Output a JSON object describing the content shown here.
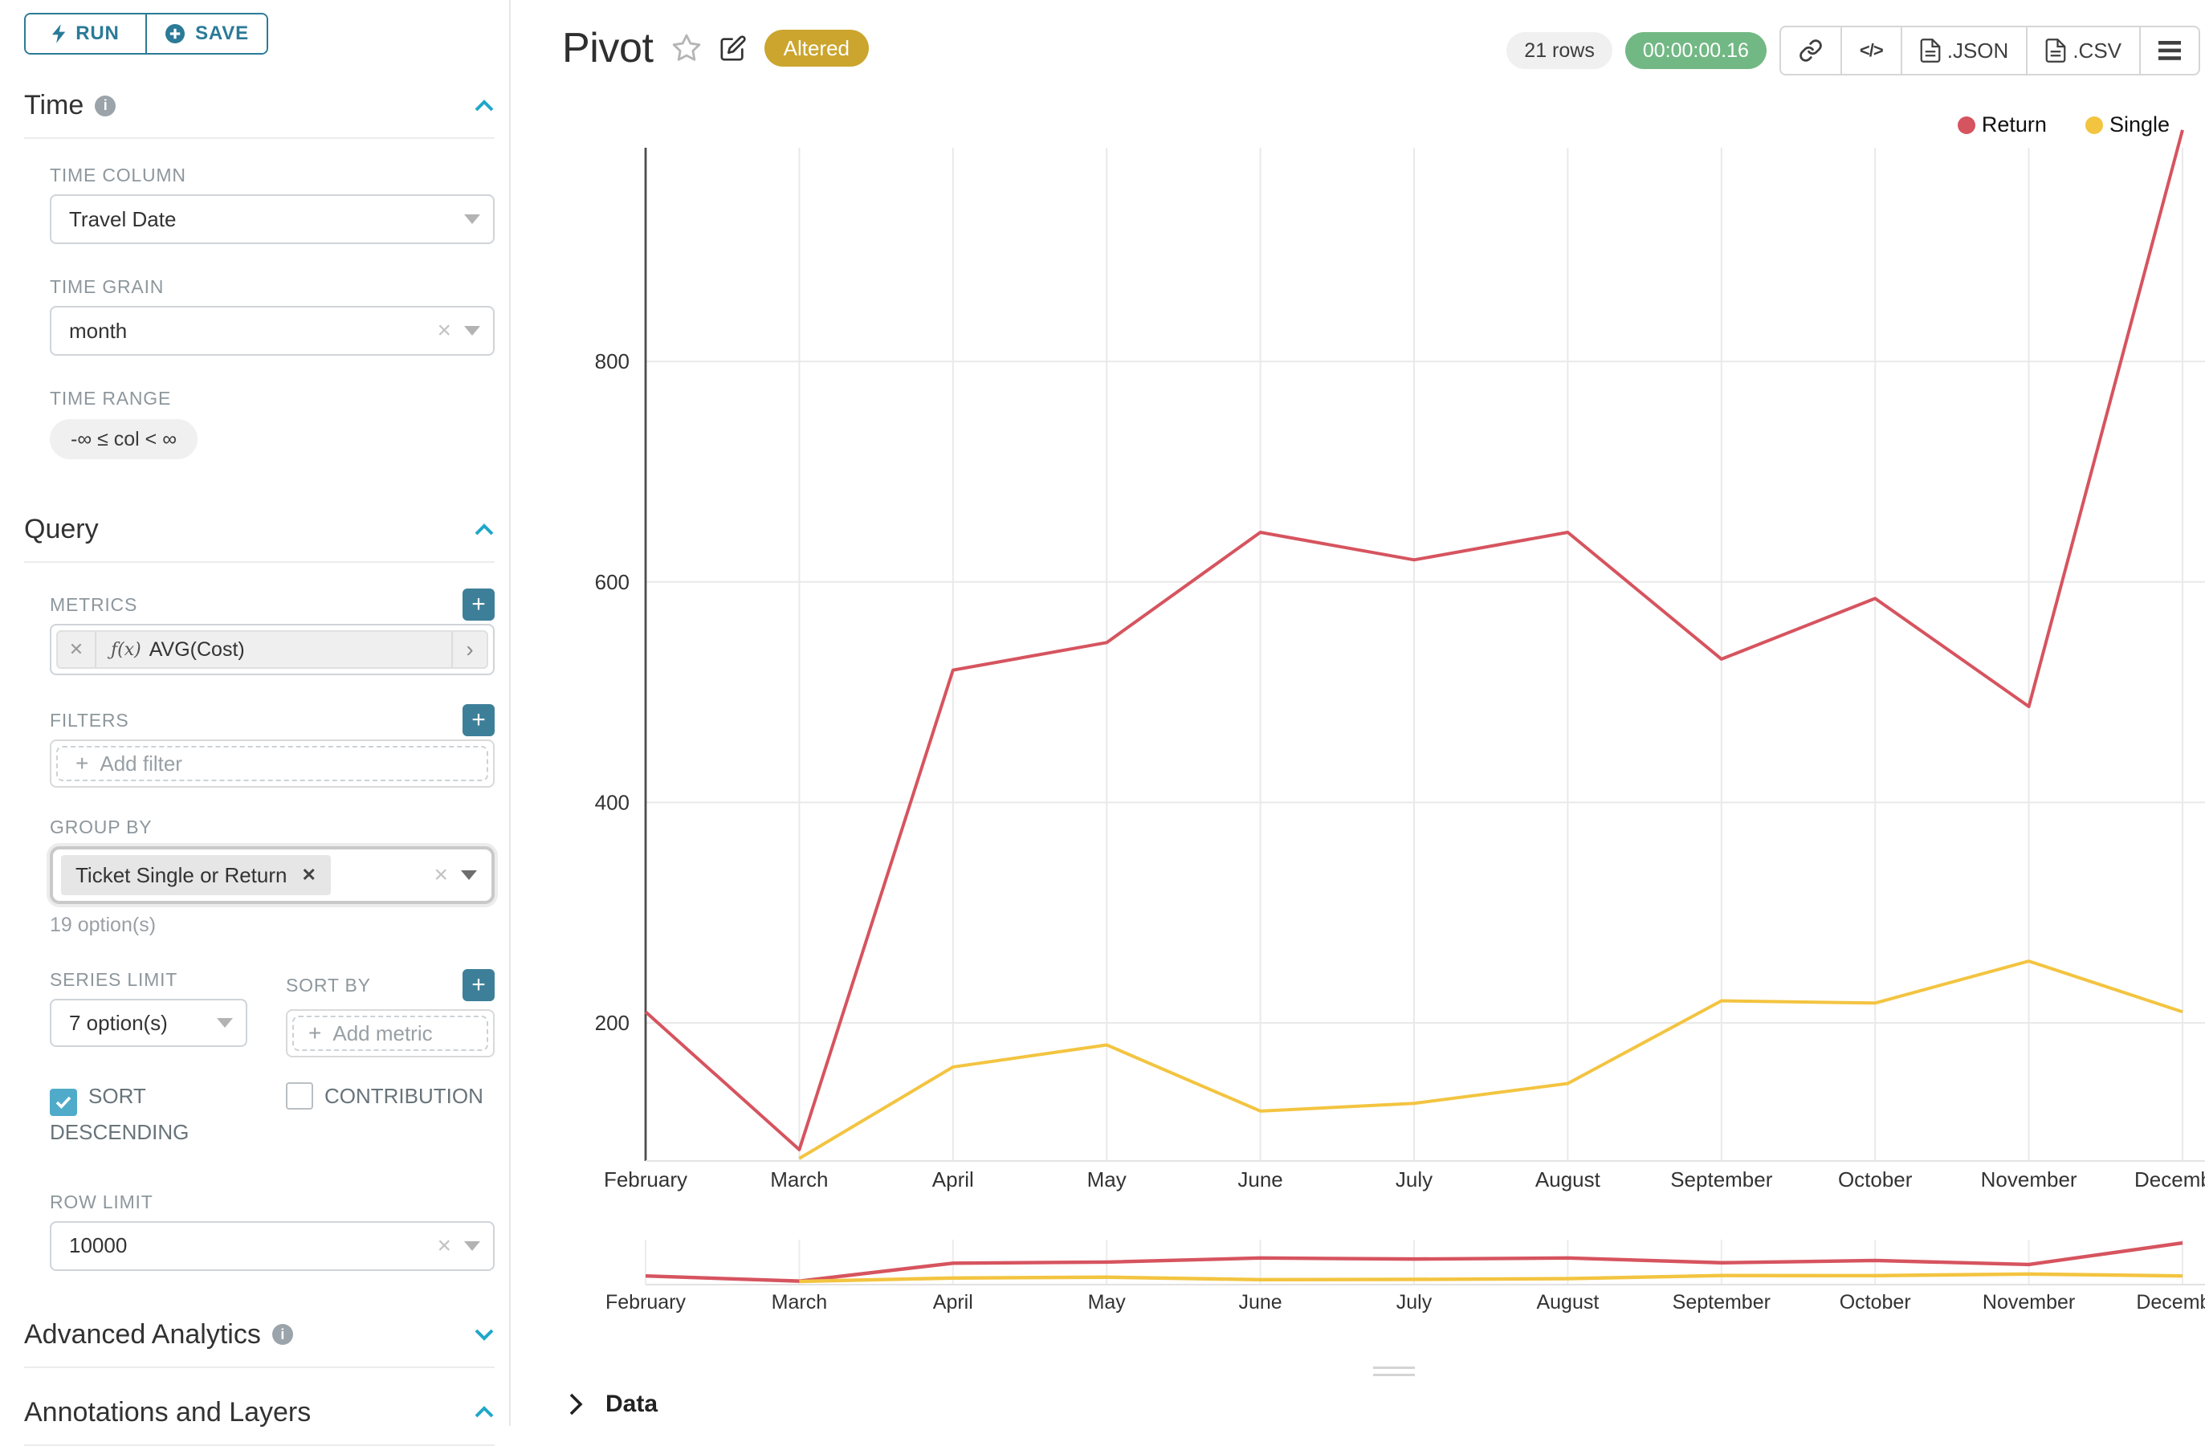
{
  "sidebar": {
    "run_label": "RUN",
    "save_label": "SAVE",
    "sections": {
      "time": "Time",
      "query": "Query",
      "advanced": "Advanced Analytics",
      "annotations": "Annotations and Layers"
    },
    "time_column": {
      "label": "TIME COLUMN",
      "value": "Travel Date"
    },
    "time_grain": {
      "label": "TIME GRAIN",
      "value": "month"
    },
    "time_range": {
      "label": "TIME RANGE",
      "value": "-∞ ≤ col < ∞"
    },
    "metrics": {
      "label": "METRICS",
      "fx": "ƒ(x)",
      "value": "AVG(Cost)"
    },
    "filters": {
      "label": "FILTERS",
      "placeholder": "Add filter"
    },
    "group_by": {
      "label": "GROUP BY",
      "tag": "Ticket Single or Return",
      "hint": "19 option(s)"
    },
    "series_limit": {
      "label": "SERIES LIMIT",
      "value": "7 option(s)"
    },
    "sort_by": {
      "label": "SORT BY",
      "placeholder": "Add metric"
    },
    "sort_descending": {
      "label": "SORT DESCENDING",
      "checked": true
    },
    "contribution": {
      "label": "CONTRIBUTION",
      "checked": false
    },
    "row_limit": {
      "label": "ROW LIMIT",
      "value": "10000"
    }
  },
  "header": {
    "title": "Pivot",
    "altered_badge": "Altered",
    "rows_badge": "21 rows",
    "timer_badge": "00:00:00.16",
    "export_json": ".JSON",
    "export_csv": ".CSV"
  },
  "chart_data": {
    "type": "line",
    "title": "Pivot",
    "x": [
      "February",
      "March",
      "April",
      "May",
      "June",
      "July",
      "August",
      "September",
      "October",
      "November",
      "December"
    ],
    "series": [
      {
        "name": "Return",
        "color": "#d6545f",
        "values": [
          210,
          85,
          520,
          545,
          645,
          620,
          645,
          530,
          585,
          487,
          1010
        ]
      },
      {
        "name": "Single",
        "color": "#f3c440",
        "values": [
          null,
          77,
          160,
          180,
          120,
          127,
          145,
          220,
          218,
          256,
          210
        ]
      }
    ],
    "y_ticks": [
      200,
      400,
      600,
      800
    ],
    "ylim": [
      0,
      1000
    ],
    "xlabel": "",
    "ylabel": "",
    "grid": true,
    "legend_position": "top-right",
    "has_range_selector_mini_chart": true
  },
  "bottom": {
    "data_label": "Data"
  }
}
